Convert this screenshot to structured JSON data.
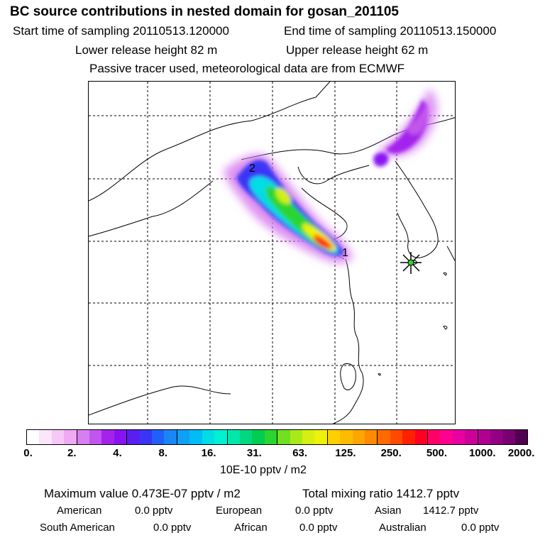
{
  "header": {
    "title": "BC  source contributions in nested domain for gosan_201105",
    "start_label": "Start time of sampling 20110513.120000",
    "end_label": "End time of sampling 20110513.150000",
    "lower_label": "Lower release height   82 m",
    "upper_label": "Upper release height   62 m",
    "tracer_label": "Passive tracer used, meteorological data are from ECMWF"
  },
  "chart_data": {
    "type": "heatmap",
    "title": "BC  source contributions in nested domain for gosan_201105",
    "colorbar": {
      "tick_labels": [
        "0.",
        "2.",
        "4.",
        "8.",
        "16.",
        "31.",
        "63.",
        "125.",
        "250.",
        "500.",
        "1000.",
        "2000."
      ],
      "units": "10E-10 pptv / m2",
      "colors": [
        "#ffffff",
        "#fbe6fb",
        "#f5c8f7",
        "#eeaaf2",
        "#d77ff0",
        "#c255ee",
        "#a323ec",
        "#8a12f0",
        "#5a1ef2",
        "#3a35f5",
        "#2060f7",
        "#1a85f5",
        "#0ea0f5",
        "#00bbf5",
        "#00dde5",
        "#00f0d0",
        "#00e8a8",
        "#00d880",
        "#00cc50",
        "#2ad530",
        "#70e020",
        "#a8ea18",
        "#d4f010",
        "#eef208",
        "#ffd000",
        "#ffbb00",
        "#ffa500",
        "#ff8a00",
        "#ff6a00",
        "#ff4a00",
        "#ff2000",
        "#ff0022",
        "#ff0066",
        "#ff0090",
        "#e800a0",
        "#cc0099",
        "#b00090",
        "#940085",
        "#780070",
        "#500050"
      ]
    },
    "grid": true,
    "trajectory_markers": [
      "1",
      "2"
    ],
    "receptor": "gosan"
  },
  "stats": {
    "max_label": "Maximum value  0.473E-07 pptv / m2",
    "total_label": "Total mixing ratio      1412.7 pptv",
    "american_label": "American",
    "american_value": "0.0 pptv",
    "european_label": "European",
    "european_value": "0.0 pptv",
    "asian_label": "Asian",
    "asian_value": "1412.7 pptv",
    "south_american_label": "South American",
    "south_american_value": "0.0 pptv",
    "african_label": "African",
    "african_value": "0.0 pptv",
    "australian_label": "Australian",
    "australian_value": "0.0 pptv"
  }
}
